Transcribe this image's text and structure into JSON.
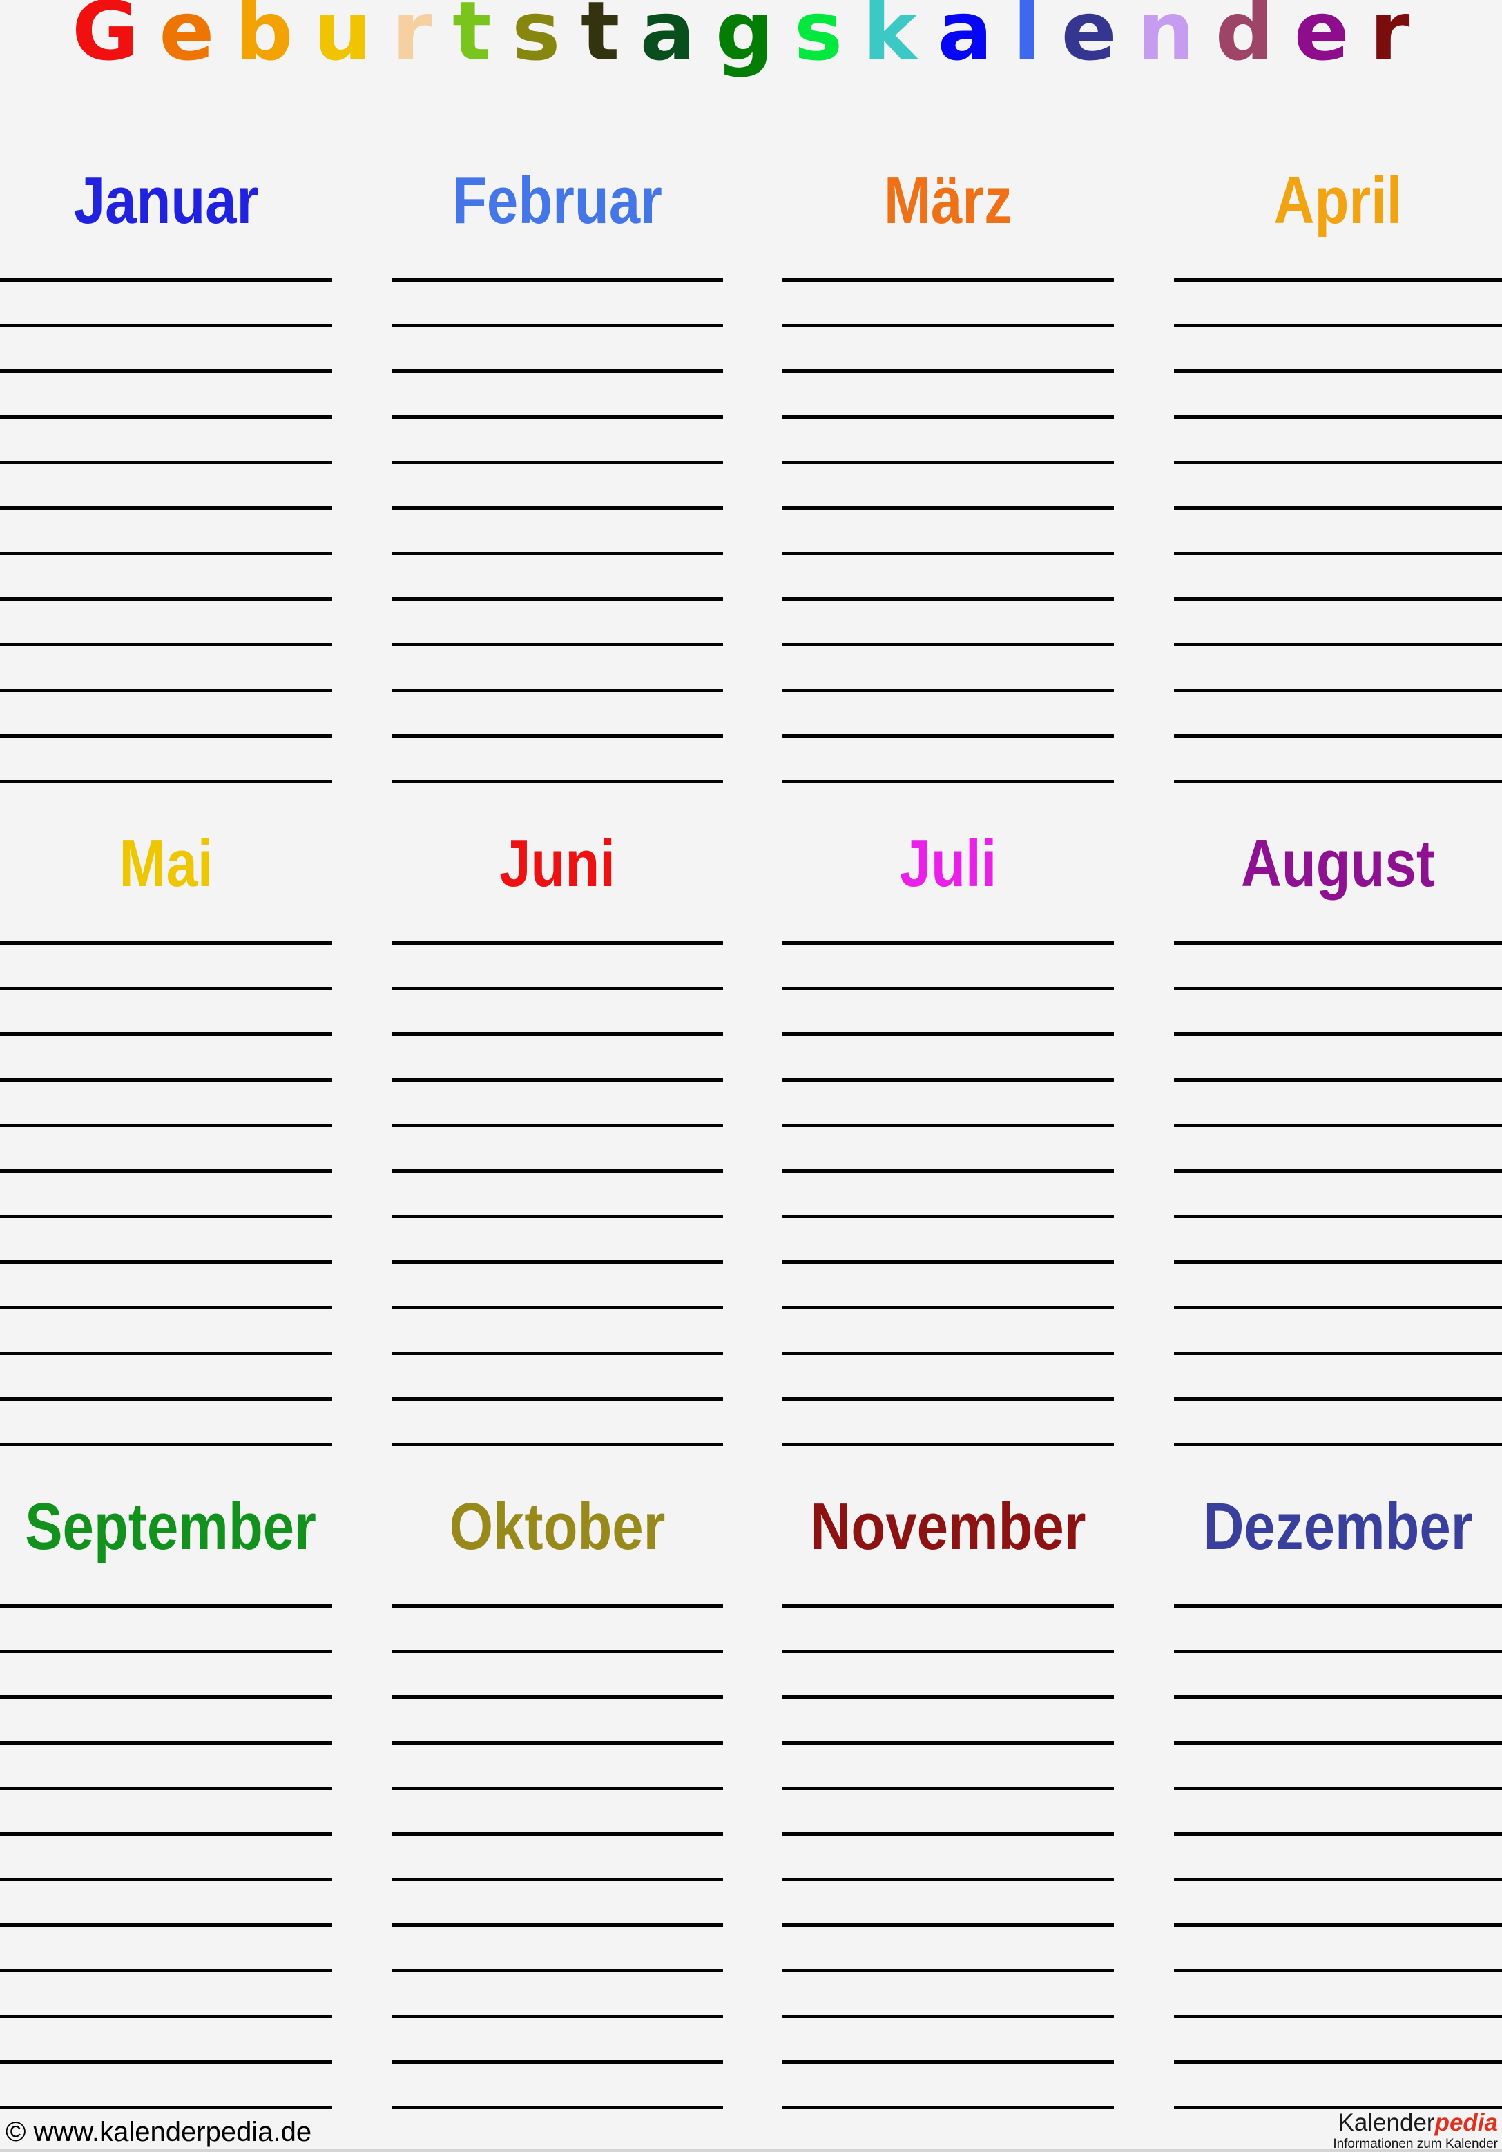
{
  "page": {
    "background": "#f4f4f4",
    "line_color": "#030303"
  },
  "title": {
    "text": "Geburtstagskalender",
    "letters": [
      {
        "char": "G",
        "color": "#f01010"
      },
      {
        "char": "e",
        "color": "#ee7502"
      },
      {
        "char": "b",
        "color": "#f2a202"
      },
      {
        "char": "u",
        "color": "#f1c402"
      },
      {
        "char": "r",
        "color": "#f7d0a2"
      },
      {
        "char": "t",
        "color": "#7ac41e"
      },
      {
        "char": "s",
        "color": "#87870f"
      },
      {
        "char": "t",
        "color": "#343310"
      },
      {
        "char": "a",
        "color": "#094e1d"
      },
      {
        "char": "g",
        "color": "#047d04"
      },
      {
        "char": "s",
        "color": "#02e83e"
      },
      {
        "char": "k",
        "color": "#3cc8c4"
      },
      {
        "char": "a",
        "color": "#0606f5"
      },
      {
        "char": "l",
        "color": "#3e68ee"
      },
      {
        "char": "e",
        "color": "#34368f"
      },
      {
        "char": "n",
        "color": "#c69cf0"
      },
      {
        "char": "d",
        "color": "#9e4467"
      },
      {
        "char": "e",
        "color": "#8d0d8d"
      },
      {
        "char": "r",
        "color": "#7c0d0d"
      }
    ]
  },
  "lines_per_month": 12,
  "months": [
    {
      "name": "Januar",
      "color": "#2121e0"
    },
    {
      "name": "Februar",
      "color": "#4576e8"
    },
    {
      "name": "März",
      "color": "#ee7118"
    },
    {
      "name": "April",
      "color": "#f2a311"
    },
    {
      "name": "Mai",
      "color": "#eec601"
    },
    {
      "name": "Juni",
      "color": "#ee1111"
    },
    {
      "name": "Juli",
      "color": "#ea1fe8"
    },
    {
      "name": "August",
      "color": "#8d1190"
    },
    {
      "name": "September",
      "color": "#12921c"
    },
    {
      "name": "Oktober",
      "color": "#97891a"
    },
    {
      "name": "November",
      "color": "#8d1212"
    },
    {
      "name": "Dezember",
      "color": "#393f9c"
    }
  ],
  "footer": {
    "copyright": "© www.kalenderpedia.de",
    "logo": {
      "black_part": "Kalender",
      "red_part": "pedia",
      "red_color": "#e1301e"
    },
    "tagline": "Informationen zum Kalender"
  }
}
